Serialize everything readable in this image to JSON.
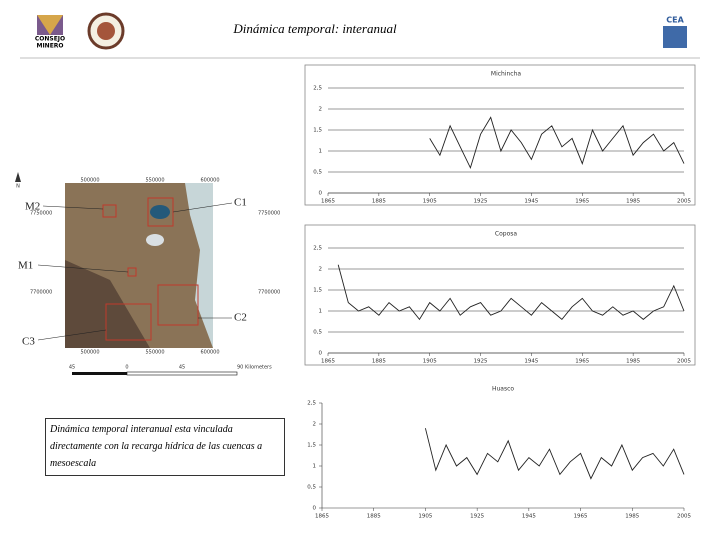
{
  "title": "Dinámica temporal: interanual",
  "logos": {
    "left": [
      "CONSEJO",
      "MINERO"
    ],
    "right": "CEA"
  },
  "caption": "Dinámica temporal interanual esta vinculada directamente con la recarga hídrica de las cuencas a mesoescala",
  "map": {
    "labels": [
      "M2",
      "C1",
      "M1",
      "C2",
      "C3"
    ],
    "coords_top": [
      "500000",
      "550000",
      "600000"
    ],
    "coords_bottom": [
      "500000",
      "550000",
      "600000"
    ],
    "coords_right": [
      "7750000",
      "7700000"
    ],
    "coords_left": [
      "7750000",
      "7700000"
    ],
    "scale": [
      "45",
      "0",
      "45",
      "90 Kilometers"
    ],
    "north": "N"
  },
  "chart_data": [
    {
      "type": "line",
      "title": "Michincha",
      "framed": true,
      "x": [
        1905,
        1909,
        1913,
        1917,
        1921,
        1925,
        1929,
        1933,
        1937,
        1941,
        1945,
        1949,
        1953,
        1957,
        1961,
        1965,
        1969,
        1973,
        1977,
        1981,
        1985,
        1989,
        1993,
        1997,
        2001,
        2005
      ],
      "series": [
        {
          "name": "Michincha",
          "color": "#222222",
          "values": [
            1.3,
            0.9,
            1.6,
            1.1,
            0.6,
            1.4,
            1.8,
            1.0,
            1.5,
            1.2,
            0.8,
            1.4,
            1.6,
            1.1,
            1.3,
            0.7,
            1.5,
            1.0,
            1.3,
            1.6,
            0.9,
            1.2,
            1.4,
            1.0,
            1.2,
            0.7
          ]
        }
      ],
      "xlim": [
        1865,
        2005
      ],
      "xticks": [
        1865,
        1885,
        1905,
        1925,
        1945,
        1965,
        1985,
        2005
      ],
      "ylim": [
        0,
        2.5
      ],
      "yticks": [
        0,
        {
          "value": 0.5,
          "label": "0,5"
        },
        1,
        {
          "value": 1.5,
          "label": "1,5"
        },
        2,
        {
          "value": 2.5,
          "label": "2,5"
        }
      ],
      "grid": true
    },
    {
      "type": "line",
      "title": "Coposa",
      "framed": true,
      "x": [
        1869,
        1873,
        1877,
        1881,
        1885,
        1889,
        1893,
        1897,
        1901,
        1905,
        1909,
        1913,
        1917,
        1921,
        1925,
        1929,
        1933,
        1937,
        1941,
        1945,
        1949,
        1953,
        1957,
        1961,
        1965,
        1969,
        1973,
        1977,
        1981,
        1985,
        1989,
        1993,
        1997,
        2001,
        2005
      ],
      "series": [
        {
          "name": "Coposa",
          "color": "#222222",
          "values": [
            2.1,
            1.2,
            1.0,
            1.1,
            0.9,
            1.2,
            1.0,
            1.1,
            0.8,
            1.2,
            1.0,
            1.3,
            0.9,
            1.1,
            1.2,
            0.9,
            1.0,
            1.3,
            1.1,
            0.9,
            1.2,
            1.0,
            0.8,
            1.1,
            1.3,
            1.0,
            0.9,
            1.1,
            0.9,
            1.0,
            0.8,
            1.0,
            1.1,
            1.6,
            1.0
          ]
        }
      ],
      "xlim": [
        1865,
        2005
      ],
      "xticks": [
        1865,
        1885,
        1905,
        1925,
        1945,
        1965,
        1985,
        2005
      ],
      "ylim": [
        0,
        2.5
      ],
      "yticks": [
        0,
        {
          "value": 0.5,
          "label": "0,5"
        },
        1,
        {
          "value": 1.5,
          "label": "1,5"
        },
        2,
        {
          "value": 2.5,
          "label": "2,5"
        }
      ],
      "grid": true
    },
    {
      "type": "line",
      "title": "Huasco",
      "framed": false,
      "x": [
        1905,
        1909,
        1913,
        1917,
        1921,
        1925,
        1929,
        1933,
        1937,
        1941,
        1945,
        1949,
        1953,
        1957,
        1961,
        1965,
        1969,
        1973,
        1977,
        1981,
        1985,
        1989,
        1993,
        1997,
        2001,
        2005
      ],
      "series": [
        {
          "name": "Huasco",
          "color": "#222222",
          "values": [
            1.9,
            0.9,
            1.5,
            1.0,
            1.2,
            0.8,
            1.3,
            1.1,
            1.6,
            0.9,
            1.2,
            1.0,
            1.4,
            0.8,
            1.1,
            1.3,
            0.7,
            1.2,
            1.0,
            1.5,
            0.9,
            1.2,
            1.3,
            1.0,
            1.4,
            0.8
          ]
        }
      ],
      "xlim": [
        1865,
        2005
      ],
      "xticks": [
        1865,
        1885,
        1905,
        1925,
        1945,
        1965,
        1985,
        2005
      ],
      "ylim": [
        0,
        2.5
      ],
      "yticks": [
        0,
        {
          "value": 0.5,
          "label": "0,5"
        },
        1,
        {
          "value": 1.5,
          "label": "1,5"
        },
        2,
        {
          "value": 2.5,
          "label": "2,5"
        }
      ],
      "grid": false
    }
  ]
}
